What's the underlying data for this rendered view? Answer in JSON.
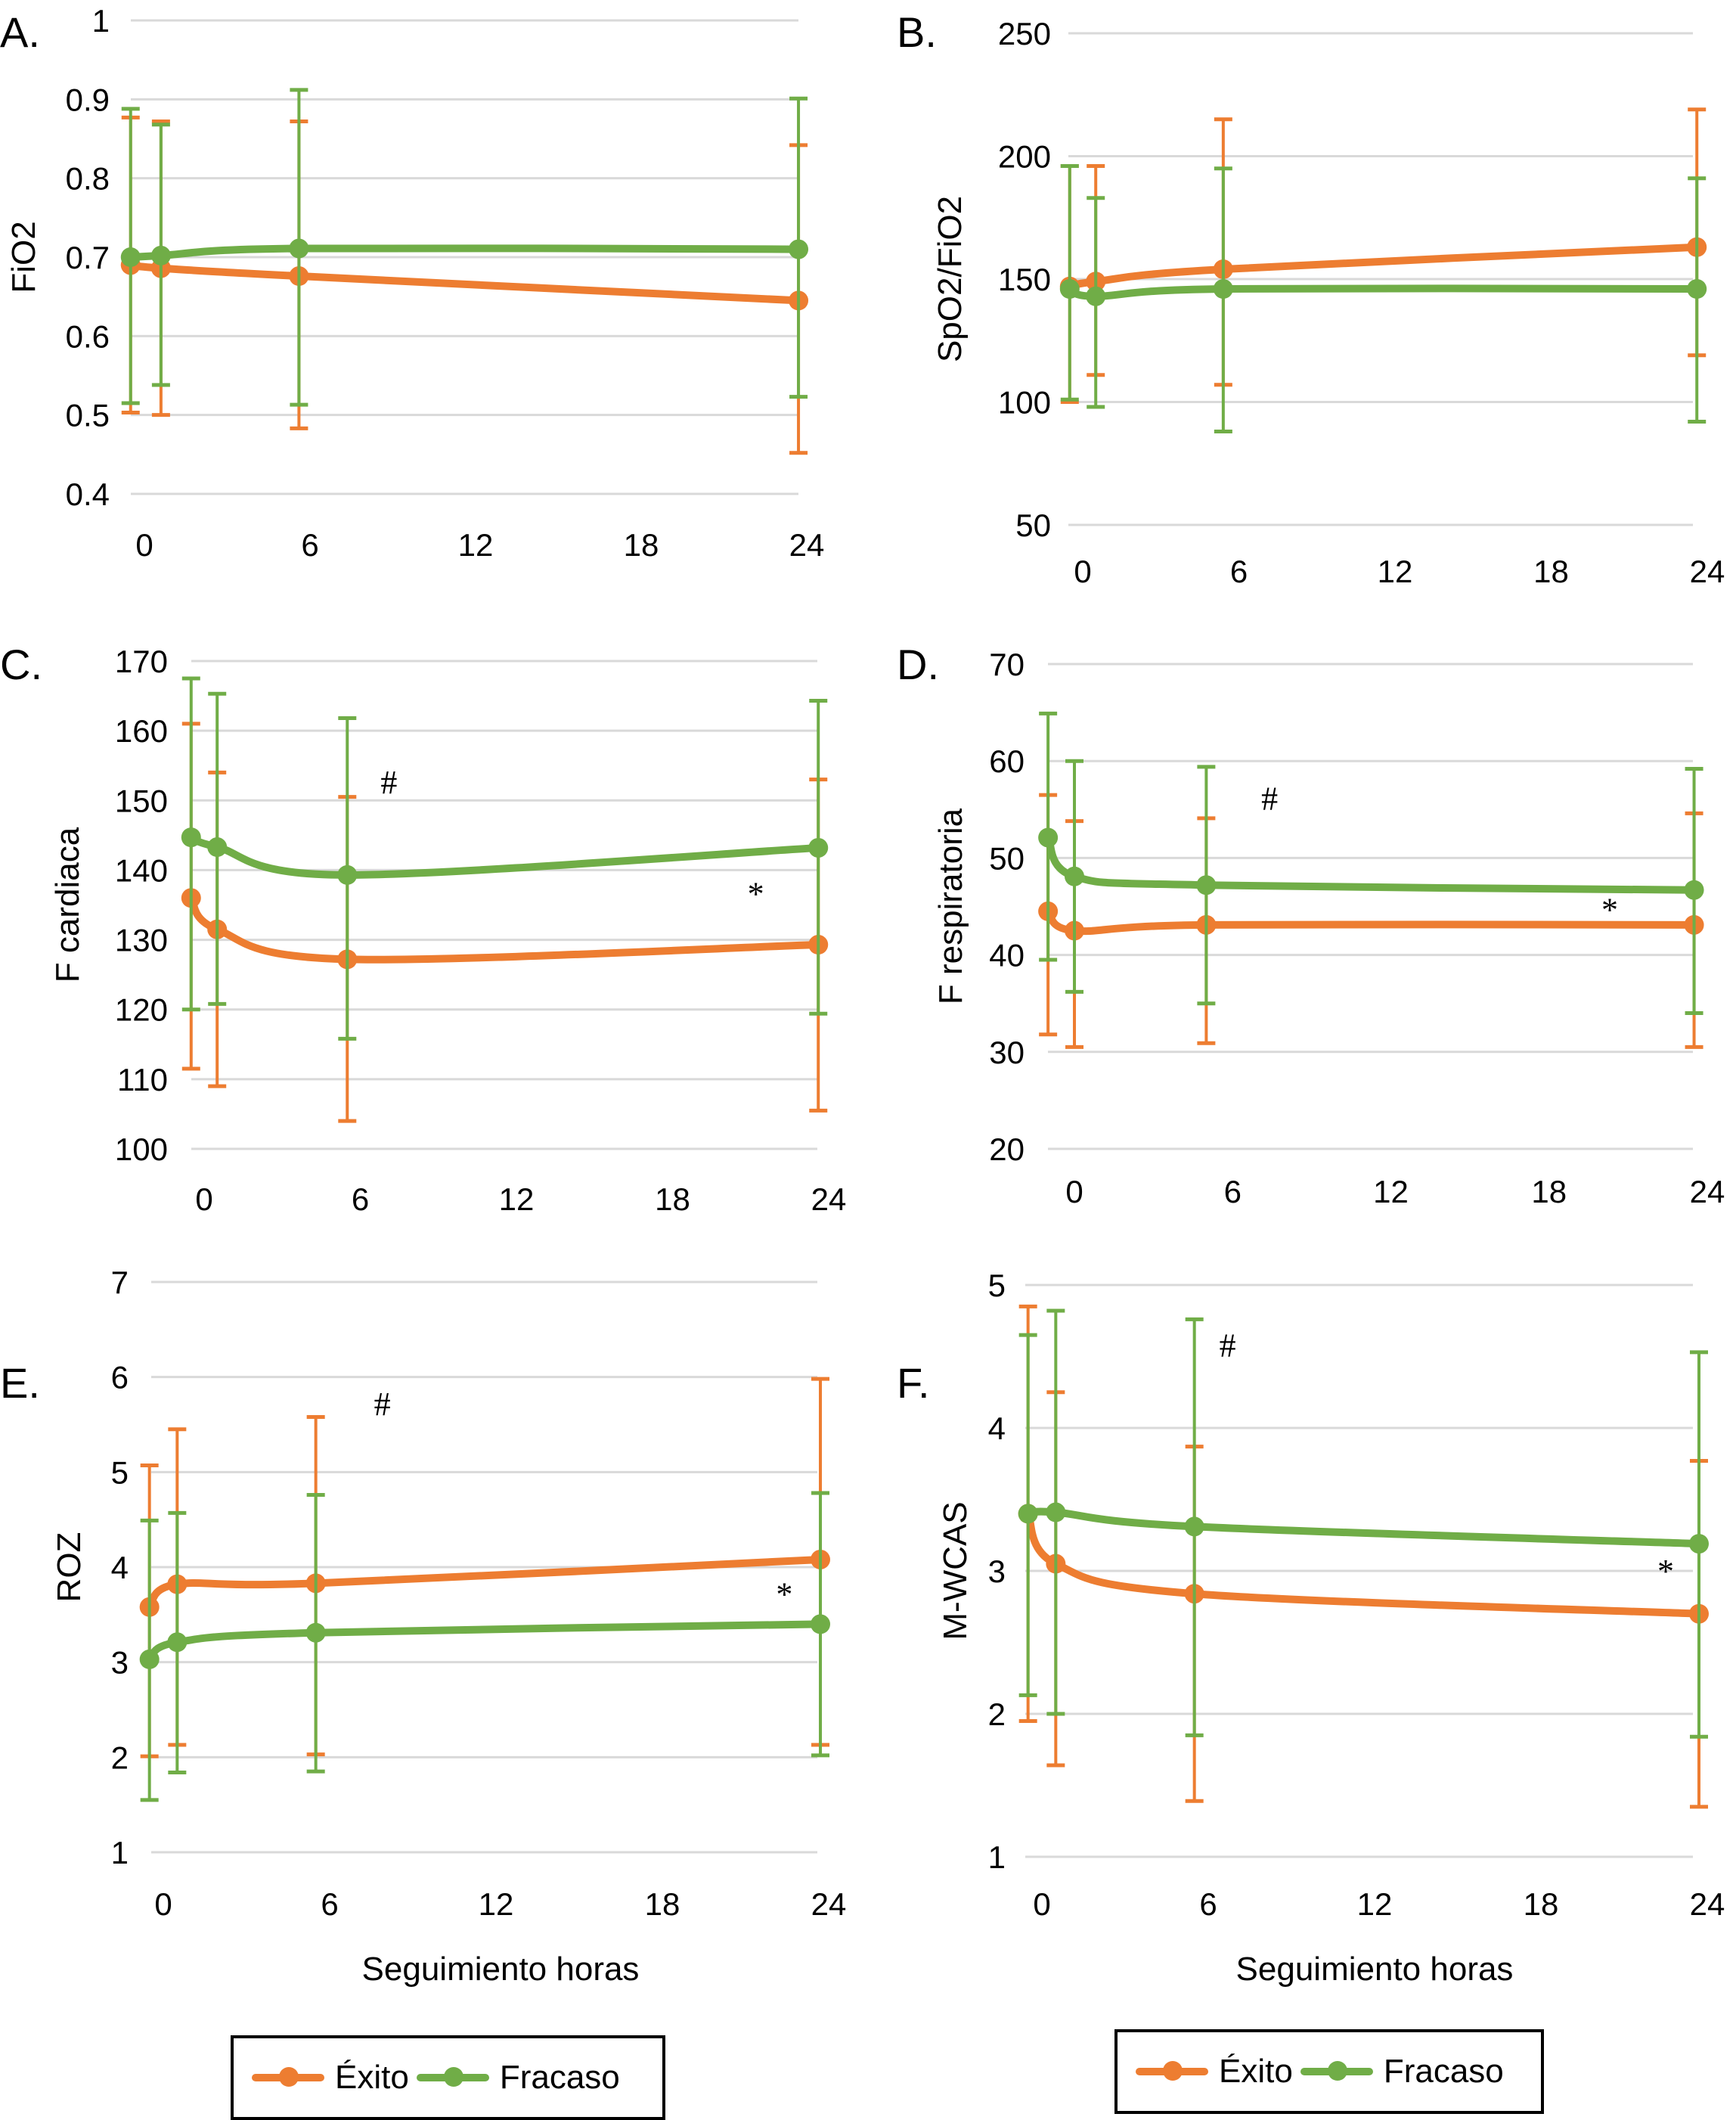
{
  "colors": {
    "exito": "#ED7D31",
    "fracaso": "#70AD47",
    "grid": "#D9D9D9",
    "text": "#000000"
  },
  "legend": [
    {
      "label": "Éxito",
      "color_key": "exito"
    },
    {
      "label": "Fracaso",
      "color_key": "fracaso"
    }
  ],
  "chart_data": [
    {
      "panel": "A.",
      "type": "line",
      "ylabel": "FiO2",
      "xlabel": "",
      "ylim": [
        0.4,
        1.0
      ],
      "yticks": [
        0.4,
        0.5,
        0.6,
        0.7,
        0.8,
        0.9,
        1
      ],
      "ytick_labels": [
        "0.4",
        "0.5",
        "0.6",
        "0.7",
        "0.8",
        "0.9",
        "1"
      ],
      "xlim": [
        0,
        24
      ],
      "xticks": [
        0,
        6,
        12,
        18,
        24
      ],
      "x": [
        -0.5,
        0.6,
        5.6,
        23.7
      ],
      "grid": true,
      "annotations": [],
      "series": [
        {
          "name": "Éxito",
          "values": [
            0.69,
            0.686,
            0.676,
            0.645
          ],
          "err_high": [
            0.877,
            0.872,
            0.872,
            0.842
          ],
          "err_low": [
            0.503,
            0.5,
            0.483,
            0.452
          ]
        },
        {
          "name": "Fracaso",
          "values": [
            0.7,
            0.702,
            0.711,
            0.71
          ],
          "err_high": [
            0.888,
            0.868,
            0.912,
            0.901
          ],
          "err_low": [
            0.515,
            0.538,
            0.513,
            0.523
          ]
        }
      ]
    },
    {
      "panel": "B.",
      "type": "line",
      "ylabel": "SpO2/FiO2",
      "xlabel": "",
      "ylim": [
        50,
        250
      ],
      "yticks": [
        50,
        100,
        150,
        200,
        250
      ],
      "ytick_labels": [
        "50",
        "100",
        "150",
        "200",
        "250"
      ],
      "xlim": [
        0,
        24
      ],
      "xticks": [
        0,
        6,
        12,
        18,
        24
      ],
      "x": [
        -0.5,
        0.5,
        5.4,
        23.6
      ],
      "grid": true,
      "annotations": [],
      "series": [
        {
          "name": "Éxito",
          "values": [
            147,
            149,
            154,
            163
          ],
          "err_high": [
            196,
            196,
            215,
            219
          ],
          "err_low": [
            100,
            111,
            107,
            119
          ]
        },
        {
          "name": "Fracaso",
          "values": [
            146,
            143,
            146,
            146
          ],
          "err_high": [
            196,
            183,
            195,
            191
          ],
          "err_low": [
            101,
            98,
            88,
            92
          ]
        }
      ]
    },
    {
      "panel": "C.",
      "type": "line",
      "ylabel": "F cardiaca",
      "xlabel": "",
      "ylim": [
        100,
        170
      ],
      "yticks": [
        100,
        110,
        120,
        130,
        140,
        150,
        160,
        170
      ],
      "ytick_labels": [
        "100",
        "110",
        "120",
        "130",
        "140",
        "150",
        "160",
        "170"
      ],
      "xlim": [
        0,
        24
      ],
      "xticks": [
        0,
        6,
        12,
        18,
        24
      ],
      "x": [
        -0.5,
        0.5,
        5.5,
        23.6
      ],
      "grid": true,
      "annotations": [
        {
          "text": "#",
          "x": 7.1,
          "y": 151
        },
        {
          "text": "*",
          "x": 21.2,
          "y": 135
        }
      ],
      "series": [
        {
          "name": "Éxito",
          "values": [
            136,
            131.5,
            127.2,
            129.3
          ],
          "err_high": [
            161,
            154,
            150.5,
            153
          ],
          "err_low": [
            111.5,
            109,
            104,
            105.5
          ]
        },
        {
          "name": "Fracaso",
          "values": [
            144.7,
            143.3,
            139.3,
            143.2
          ],
          "err_high": [
            167.5,
            165.3,
            161.8,
            164.3
          ],
          "err_low": [
            120,
            120.8,
            115.8,
            119.4
          ]
        }
      ]
    },
    {
      "panel": "D.",
      "type": "line",
      "ylabel": "F respiratoria",
      "xlabel": "",
      "ylim": [
        20,
        70
      ],
      "yticks": [
        20,
        30,
        40,
        50,
        60,
        70
      ],
      "ytick_labels": [
        "20",
        "30",
        "40",
        "50",
        "60",
        "70"
      ],
      "xlim": [
        0,
        24
      ],
      "xticks": [
        0,
        6,
        12,
        18,
        24
      ],
      "x": [
        -1.0,
        0.0,
        5.0,
        23.5
      ],
      "grid": true,
      "annotations": [
        {
          "text": "#",
          "x": 7.4,
          "y": 55
        },
        {
          "text": "*",
          "x": 20.3,
          "y": 43.5
        }
      ],
      "series": [
        {
          "name": "Éxito",
          "values": [
            44.5,
            42.5,
            43.1,
            43.1
          ],
          "err_high": [
            56.5,
            53.8,
            54.1,
            54.6
          ],
          "err_low": [
            31.8,
            30.5,
            30.9,
            30.5
          ]
        },
        {
          "name": "Fracaso",
          "values": [
            52.1,
            48.1,
            47.2,
            46.7
          ],
          "err_high": [
            64.9,
            60.0,
            59.4,
            59.2
          ],
          "err_low": [
            39.5,
            36.2,
            35.0,
            34.0
          ]
        }
      ]
    },
    {
      "panel": "E.",
      "type": "line",
      "ylabel": "ROZ",
      "xlabel": "Seguimiento horas",
      "ylim": [
        1,
        7
      ],
      "yticks": [
        1,
        2,
        3,
        4,
        5,
        6,
        7
      ],
      "ytick_labels": [
        "1",
        "2",
        "3",
        "4",
        "5",
        "6",
        "7"
      ],
      "xlim": [
        0,
        24
      ],
      "xticks": [
        0,
        6,
        12,
        18,
        24
      ],
      "x": [
        -0.5,
        0.5,
        5.5,
        23.7
      ],
      "grid": true,
      "annotations": [
        {
          "text": "#",
          "x": 7.9,
          "y": 5.6
        },
        {
          "text": "*",
          "x": 22.4,
          "y": 3.6
        }
      ],
      "series": [
        {
          "name": "Éxito",
          "values": [
            3.58,
            3.82,
            3.83,
            4.08
          ],
          "err_high": [
            5.07,
            5.45,
            5.58,
            5.98
          ],
          "err_low": [
            2.01,
            2.13,
            2.03,
            2.13
          ]
        },
        {
          "name": "Fracaso",
          "values": [
            3.03,
            3.21,
            3.31,
            3.4
          ],
          "err_high": [
            4.49,
            4.57,
            4.76,
            4.78
          ],
          "err_low": [
            1.55,
            1.84,
            1.85,
            2.02
          ]
        }
      ]
    },
    {
      "panel": "F.",
      "type": "line",
      "ylabel": "M-WCAS",
      "xlabel": "Seguimiento horas",
      "ylim": [
        1,
        5
      ],
      "yticks": [
        1,
        2,
        3,
        4,
        5
      ],
      "ytick_labels": [
        "1",
        "2",
        "3",
        "4",
        "5"
      ],
      "xlim": [
        0,
        24
      ],
      "xticks": [
        0,
        6,
        12,
        18,
        24
      ],
      "x": [
        -0.5,
        0.5,
        5.5,
        23.7
      ],
      "grid": true,
      "annotations": [
        {
          "text": "#",
          "x": 6.7,
          "y": 4.5
        },
        {
          "text": "*",
          "x": 22.5,
          "y": 2.92
        }
      ],
      "series": [
        {
          "name": "Éxito",
          "values": [
            3.4,
            3.05,
            2.84,
            2.7
          ],
          "err_high": [
            4.85,
            4.25,
            3.87,
            3.77
          ],
          "err_low": [
            1.95,
            1.64,
            1.39,
            1.35
          ]
        },
        {
          "name": "Fracaso",
          "values": [
            3.4,
            3.41,
            3.31,
            3.19
          ],
          "err_high": [
            4.65,
            4.82,
            4.76,
            4.53
          ],
          "err_low": [
            2.13,
            2.0,
            1.85,
            1.84
          ]
        }
      ]
    }
  ]
}
